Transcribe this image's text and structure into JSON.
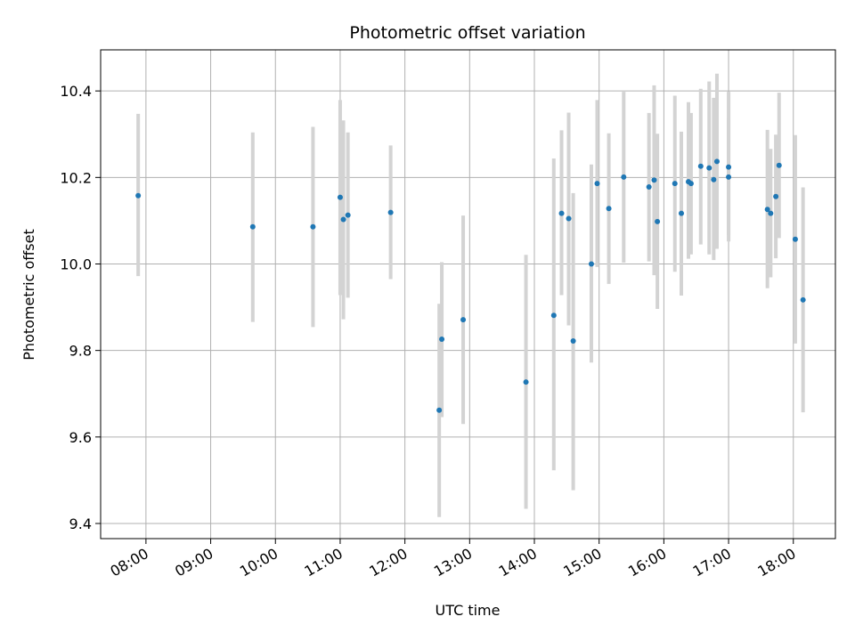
{
  "chart_data": {
    "type": "scatter",
    "title": "Photometric offset variation",
    "xlabel": "UTC time",
    "ylabel": "Photometric offset",
    "x_unit": "UTC hours (decimal)",
    "xlim": [
      7.3,
      18.65
    ],
    "ylim": [
      9.365,
      10.495
    ],
    "x_ticks": [
      {
        "value": 8,
        "label": "08:00"
      },
      {
        "value": 9,
        "label": "09:00"
      },
      {
        "value": 10,
        "label": "10:00"
      },
      {
        "value": 11,
        "label": "11:00"
      },
      {
        "value": 12,
        "label": "12:00"
      },
      {
        "value": 13,
        "label": "13:00"
      },
      {
        "value": 14,
        "label": "14:00"
      },
      {
        "value": 15,
        "label": "15:00"
      },
      {
        "value": 16,
        "label": "16:00"
      },
      {
        "value": 17,
        "label": "17:00"
      },
      {
        "value": 18,
        "label": "18:00"
      }
    ],
    "y_ticks": [
      {
        "value": 9.4,
        "label": "9.4"
      },
      {
        "value": 9.6,
        "label": "9.6"
      },
      {
        "value": 9.8,
        "label": "9.8"
      },
      {
        "value": 10.0,
        "label": "10.0"
      },
      {
        "value": 10.2,
        "label": "10.2"
      },
      {
        "value": 10.4,
        "label": "10.4"
      }
    ],
    "grid": true,
    "colors": {
      "marker": "#1f77b4",
      "errorbar": "#d3d3d3",
      "grid": "#b0b0b0"
    },
    "points": [
      {
        "x": 7.88,
        "y": 10.158,
        "ylo": 9.972,
        "yhi": 10.347
      },
      {
        "x": 9.65,
        "y": 10.086,
        "ylo": 9.866,
        "yhi": 10.304
      },
      {
        "x": 10.58,
        "y": 10.086,
        "ylo": 9.854,
        "yhi": 10.317
      },
      {
        "x": 11.0,
        "y": 10.154,
        "ylo": 9.928,
        "yhi": 10.379
      },
      {
        "x": 11.05,
        "y": 10.103,
        "ylo": 9.872,
        "yhi": 10.332
      },
      {
        "x": 11.12,
        "y": 10.113,
        "ylo": 9.922,
        "yhi": 10.304
      },
      {
        "x": 11.78,
        "y": 10.119,
        "ylo": 9.965,
        "yhi": 10.274
      },
      {
        "x": 12.53,
        "y": 9.662,
        "ylo": 9.415,
        "yhi": 9.908
      },
      {
        "x": 12.57,
        "y": 9.826,
        "ylo": 9.646,
        "yhi": 10.004
      },
      {
        "x": 12.9,
        "y": 9.871,
        "ylo": 9.63,
        "yhi": 10.112
      },
      {
        "x": 13.87,
        "y": 9.727,
        "ylo": 9.434,
        "yhi": 10.021
      },
      {
        "x": 14.3,
        "y": 9.881,
        "ylo": 9.523,
        "yhi": 10.244
      },
      {
        "x": 14.42,
        "y": 10.117,
        "ylo": 9.928,
        "yhi": 10.309
      },
      {
        "x": 14.53,
        "y": 10.105,
        "ylo": 9.858,
        "yhi": 10.35
      },
      {
        "x": 14.6,
        "y": 9.822,
        "ylo": 9.477,
        "yhi": 10.164
      },
      {
        "x": 14.88,
        "y": 10.0,
        "ylo": 9.772,
        "yhi": 10.23
      },
      {
        "x": 14.97,
        "y": 10.186,
        "ylo": 9.993,
        "yhi": 10.379
      },
      {
        "x": 15.15,
        "y": 10.128,
        "ylo": 9.954,
        "yhi": 10.302
      },
      {
        "x": 15.38,
        "y": 10.201,
        "ylo": 10.003,
        "yhi": 10.398
      },
      {
        "x": 15.77,
        "y": 10.178,
        "ylo": 10.006,
        "yhi": 10.349
      },
      {
        "x": 15.85,
        "y": 10.194,
        "ylo": 9.974,
        "yhi": 10.413
      },
      {
        "x": 15.9,
        "y": 10.098,
        "ylo": 9.896,
        "yhi": 10.301
      },
      {
        "x": 16.17,
        "y": 10.186,
        "ylo": 9.982,
        "yhi": 10.389
      },
      {
        "x": 16.27,
        "y": 10.117,
        "ylo": 9.927,
        "yhi": 10.306
      },
      {
        "x": 16.38,
        "y": 10.19,
        "ylo": 10.012,
        "yhi": 10.374
      },
      {
        "x": 16.42,
        "y": 10.186,
        "ylo": 10.022,
        "yhi": 10.349
      },
      {
        "x": 16.57,
        "y": 10.226,
        "ylo": 10.045,
        "yhi": 10.405
      },
      {
        "x": 16.7,
        "y": 10.222,
        "ylo": 10.022,
        "yhi": 10.422
      },
      {
        "x": 16.77,
        "y": 10.195,
        "ylo": 10.009,
        "yhi": 10.384
      },
      {
        "x": 16.82,
        "y": 10.237,
        "ylo": 10.035,
        "yhi": 10.44
      },
      {
        "x": 17.0,
        "y": 10.224,
        "ylo": 10.052,
        "yhi": 10.398
      },
      {
        "x": 17.0,
        "y": 10.201,
        "ylo": 10.067,
        "yhi": 10.335
      },
      {
        "x": 17.6,
        "y": 10.126,
        "ylo": 9.944,
        "yhi": 10.31
      },
      {
        "x": 17.65,
        "y": 10.117,
        "ylo": 9.969,
        "yhi": 10.266
      },
      {
        "x": 17.73,
        "y": 10.156,
        "ylo": 10.013,
        "yhi": 10.299
      },
      {
        "x": 17.78,
        "y": 10.228,
        "ylo": 10.06,
        "yhi": 10.396
      },
      {
        "x": 18.03,
        "y": 10.057,
        "ylo": 9.816,
        "yhi": 10.298
      },
      {
        "x": 18.15,
        "y": 9.917,
        "ylo": 9.657,
        "yhi": 10.177
      }
    ]
  }
}
